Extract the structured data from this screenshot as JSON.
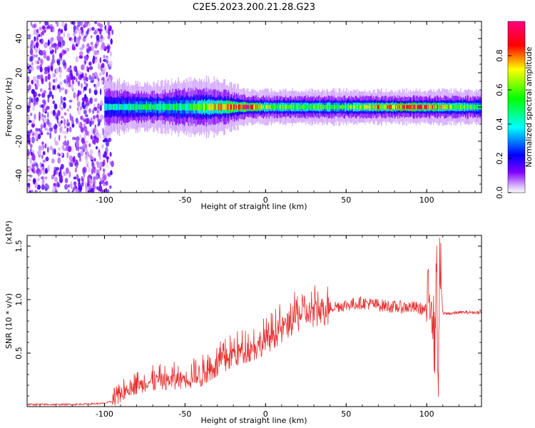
{
  "title": "C2E5.2023.200.21.28.G23",
  "chart_data": [
    {
      "type": "heatmap",
      "xlabel": "Height of straight line (km)",
      "ylabel": "Frequency (Hz)",
      "xlim": [
        -148,
        134
      ],
      "ylim": [
        -50,
        50
      ],
      "xticks": [
        -100,
        -50,
        0,
        50,
        100
      ],
      "yticks": [
        -40,
        -20,
        0,
        20,
        40
      ],
      "colorbar": {
        "label": "Normalized spectral amplitude",
        "range": [
          0,
          1
        ],
        "ticks": [
          "0.0",
          "0.2",
          "0.4",
          "0.6",
          "0.8"
        ],
        "tick_values": [
          0.0,
          0.2,
          0.4,
          0.6,
          0.8
        ],
        "colors": [
          "#ffffff",
          "#d9b3ff",
          "#8000ff",
          "#0000ff",
          "#00ffff",
          "#00ff00",
          "#ffff00",
          "#ff0000",
          "#ff0080"
        ]
      },
      "noise_region_x": [
        -148,
        -95
      ],
      "band": [
        {
          "x": -100,
          "halfwidth_hz": 5,
          "peak": 0.35
        },
        {
          "x": -75,
          "halfwidth_hz": 4,
          "peak": 0.5
        },
        {
          "x": -50,
          "halfwidth_hz": 5,
          "peak": 0.45
        },
        {
          "x": -30,
          "halfwidth_hz": 5,
          "peak": 0.75
        },
        {
          "x": -10,
          "halfwidth_hz": 3,
          "peak": 0.95
        },
        {
          "x": 0,
          "halfwidth_hz": 3,
          "peak": 0.6
        },
        {
          "x": 50,
          "halfwidth_hz": 3,
          "peak": 0.55
        },
        {
          "x": 90,
          "halfwidth_hz": 3,
          "peak": 0.9
        },
        {
          "x": 134,
          "halfwidth_hz": 3,
          "peak": 0.5
        }
      ]
    },
    {
      "type": "line",
      "xlabel": "Height of straight line (km)",
      "ylabel": "SNR (10 * v/v)",
      "yscale_label": "(x10⁴)",
      "xlim": [
        -148,
        134
      ],
      "ylim": [
        0,
        1.6
      ],
      "xticks": [
        -100,
        -50,
        0,
        50,
        100
      ],
      "yticks": [
        0.5,
        1.0,
        1.5
      ],
      "ytick_labels": [
        "0.5",
        "1.0",
        "1.5"
      ],
      "series": [
        {
          "color": "#e83030",
          "x": [
            -148,
            -120,
            -100,
            -95,
            -90,
            -85,
            -80,
            -75,
            -70,
            -65,
            -60,
            -55,
            -50,
            -45,
            -40,
            -35,
            -30,
            -25,
            -20,
            -15,
            -10,
            -5,
            0,
            5,
            10,
            15,
            20,
            25,
            30,
            35,
            40,
            45,
            50,
            55,
            60,
            65,
            70,
            75,
            80,
            85,
            90,
            95,
            100,
            103,
            105,
            106,
            107,
            108,
            110,
            115,
            120,
            125,
            134
          ],
          "y": [
            0.02,
            0.02,
            0.03,
            0.05,
            0.12,
            0.18,
            0.2,
            0.22,
            0.24,
            0.25,
            0.25,
            0.26,
            0.27,
            0.28,
            0.3,
            0.35,
            0.4,
            0.45,
            0.5,
            0.52,
            0.55,
            0.58,
            0.62,
            0.68,
            0.74,
            0.8,
            0.85,
            0.88,
            0.9,
            0.92,
            0.93,
            0.94,
            0.95,
            0.96,
            0.97,
            0.96,
            0.95,
            0.94,
            0.93,
            0.93,
            0.93,
            0.92,
            0.9,
            1.1,
            0.5,
            1.55,
            0.05,
            1.4,
            0.87,
            0.87,
            0.88,
            0.88,
            0.88
          ]
        }
      ]
    }
  ]
}
